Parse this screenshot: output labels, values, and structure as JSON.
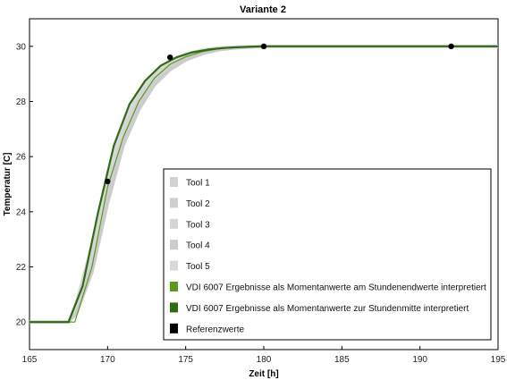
{
  "chart_data": {
    "type": "line",
    "title": "Variante 2",
    "xlabel": "Zeit [h]",
    "ylabel": "Temperatur [C]",
    "xlim": [
      165,
      195
    ],
    "ylim": [
      19,
      31
    ],
    "x_ticks": [
      "165",
      "170",
      "175",
      "180",
      "185",
      "190",
      "195"
    ],
    "y_ticks": [
      "20",
      "22",
      "24",
      "26",
      "28",
      "30"
    ],
    "x_tick_values": [
      165,
      170,
      175,
      180,
      185,
      190,
      195
    ],
    "y_tick_values": [
      20,
      22,
      24,
      26,
      28,
      30
    ],
    "grid": false,
    "legend_position": "lower-right",
    "series": [
      {
        "name": "Tool 1",
        "color": "#d2d2d2",
        "style": "band",
        "x": [
          165,
          167.5,
          168,
          169,
          170,
          171,
          172,
          173,
          174,
          175,
          176,
          177,
          178,
          179,
          180,
          185,
          195
        ],
        "y": [
          20,
          20,
          20.5,
          22.2,
          24.8,
          26.8,
          28.0,
          28.8,
          29.3,
          29.6,
          29.8,
          29.9,
          29.95,
          29.98,
          30,
          30,
          30
        ]
      },
      {
        "name": "Tool 2",
        "color": "#cfcfcf",
        "style": "band",
        "x": [
          165,
          167.5,
          168,
          169,
          170,
          171,
          172,
          173,
          174,
          175,
          176,
          177,
          178,
          179,
          180,
          185,
          195
        ],
        "y": [
          20,
          20,
          20.4,
          22.0,
          24.6,
          26.6,
          27.9,
          28.7,
          29.25,
          29.58,
          29.78,
          29.9,
          29.95,
          29.98,
          30,
          30,
          30
        ]
      },
      {
        "name": "Tool 3",
        "color": "#d5d5d5",
        "style": "band",
        "x": [
          165,
          167.5,
          168,
          169,
          170,
          171,
          172,
          173,
          174,
          175,
          176,
          177,
          178,
          179,
          180,
          185,
          195
        ],
        "y": [
          20,
          20,
          20.6,
          22.5,
          25.1,
          27.0,
          28.2,
          28.95,
          29.4,
          29.68,
          29.84,
          29.93,
          29.97,
          29.99,
          30,
          30,
          30
        ]
      },
      {
        "name": "Tool 4",
        "color": "#cccccc",
        "style": "band",
        "x": [
          165,
          167.5,
          168,
          169,
          170,
          171,
          172,
          173,
          174,
          175,
          176,
          177,
          178,
          179,
          180,
          185,
          195
        ],
        "y": [
          20,
          20,
          20.3,
          21.8,
          24.3,
          26.4,
          27.7,
          28.6,
          29.15,
          29.5,
          29.72,
          29.86,
          29.93,
          29.97,
          30,
          30,
          30
        ]
      },
      {
        "name": "Tool 5",
        "color": "#d8d8d8",
        "style": "band",
        "x": [
          165,
          167.5,
          168,
          169,
          170,
          171,
          172,
          173,
          174,
          175,
          176,
          177,
          178,
          179,
          180,
          185,
          195
        ],
        "y": [
          20,
          20,
          20.7,
          22.8,
          25.4,
          27.2,
          28.35,
          29.05,
          29.48,
          29.72,
          29.86,
          29.94,
          29.97,
          29.99,
          30,
          30,
          30
        ]
      },
      {
        "name": "VDI 6007 Ergebnisse als Momentanwerte am Stundenendwerte interpretiert",
        "color": "#5a9a1f",
        "style": "thin",
        "x": [
          165,
          167.9,
          169,
          170,
          171,
          172,
          173,
          174,
          175,
          176,
          177,
          178,
          179,
          180,
          185,
          195
        ],
        "y": [
          20,
          20,
          22.0,
          24.9,
          26.7,
          28.0,
          28.85,
          29.35,
          29.62,
          29.8,
          29.9,
          29.95,
          29.98,
          30,
          30,
          30
        ]
      },
      {
        "name": "VDI 6007 Ergebnisse als Momentanwerte zur Stundenmitte interpretiert",
        "color": "#2e6b14",
        "style": "thick",
        "x": [
          165,
          167.5,
          168.4,
          169.4,
          170.4,
          171.4,
          172.4,
          173.4,
          174.4,
          175.4,
          176.4,
          177.4,
          178.4,
          179.4,
          180,
          185,
          195
        ],
        "y": [
          20,
          20,
          21.3,
          24.0,
          26.4,
          27.9,
          28.75,
          29.3,
          29.6,
          29.78,
          29.88,
          29.94,
          29.97,
          29.99,
          30,
          30,
          30
        ]
      },
      {
        "name": "Referenzwerte",
        "color": "#000000",
        "style": "points",
        "x": [
          170,
          174,
          180,
          192
        ],
        "y": [
          25.1,
          29.6,
          30.0,
          30.0
        ]
      }
    ]
  }
}
